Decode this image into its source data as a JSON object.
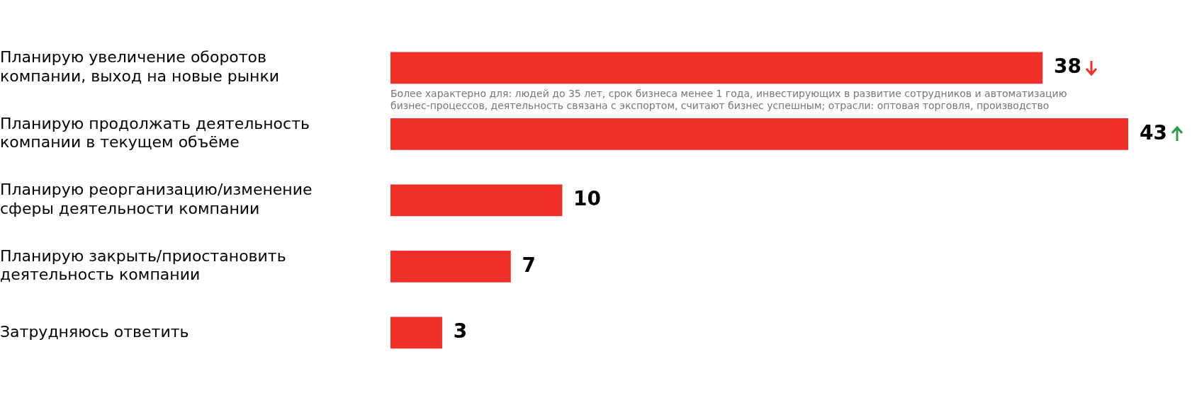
{
  "chart_data": {
    "type": "bar",
    "orientation": "horizontal",
    "categories": [
      "Планирую увеличение оборотов компании, выход на новые рынки",
      "Планирую продолжать деятельность компании в текущем объёме",
      "Планирую реорганизацию/изменение сферы деятельности компании",
      "Планирую закрыть/приостановить деятельность компании",
      "Затрудняюсь ответить"
    ],
    "values": [
      38,
      43,
      10,
      7,
      3
    ],
    "color": "#f03028",
    "data_labels": true,
    "annotations": [
      "Более характерно для: людей до 35 лет, срок бизнеса менее 1 года, инвестирующих в развитие сотрудников и автоматизацию бизнес-процессов, деятельность связана с экспортом, считают бизнес успешным; отрасли: оптовая торговля, производство"
    ],
    "grid": false,
    "legend": false
  }
}
